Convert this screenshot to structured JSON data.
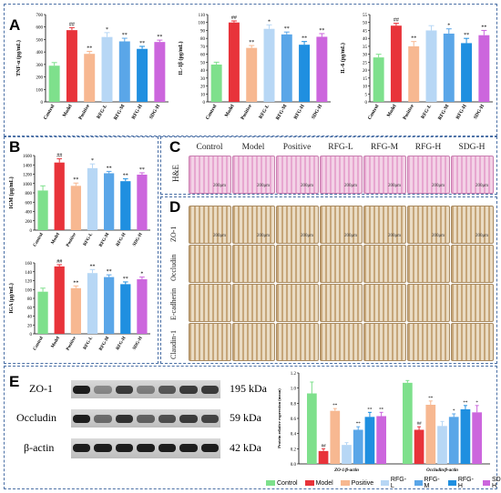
{
  "panels": {
    "A": "A",
    "B": "B",
    "C": "C",
    "D": "D",
    "E": "E"
  },
  "groups": [
    "Control",
    "Model",
    "Positive",
    "RFG-L",
    "RFG-M",
    "RFG-H",
    "SDG-H"
  ],
  "colors": [
    "#7ee08c",
    "#e8333a",
    "#f7b891",
    "#b7d7f5",
    "#5aa6e8",
    "#1f8fe0",
    "#cc66dd"
  ],
  "chart_data": [
    {
      "id": "A1",
      "type": "bar",
      "ylabel": "TNF-α (pg/mL)",
      "ylim": [
        0,
        700
      ],
      "ticks": [
        0,
        100,
        200,
        300,
        400,
        500,
        600,
        700
      ],
      "values": [
        290,
        575,
        385,
        520,
        485,
        425,
        480
      ],
      "errors": [
        25,
        20,
        20,
        35,
        25,
        20,
        15
      ],
      "sig": [
        "",
        "##",
        "**",
        "*",
        "**",
        "**",
        "**"
      ]
    },
    {
      "id": "A2",
      "type": "bar",
      "ylabel": "IL-1β (pg/mL)",
      "ylim": [
        0,
        110
      ],
      "ticks": [
        0,
        10,
        20,
        30,
        40,
        50,
        60,
        70,
        80,
        90,
        100,
        110
      ],
      "values": [
        47,
        100,
        68,
        92,
        85,
        72,
        82
      ],
      "errors": [
        3,
        2,
        3,
        5,
        3,
        4,
        4
      ],
      "sig": [
        "",
        "##",
        "**",
        "*",
        "**",
        "**",
        "**"
      ]
    },
    {
      "id": "A3",
      "type": "bar",
      "ylabel": "IL-6 (pg/mL)",
      "ylim": [
        0,
        55
      ],
      "ticks": [
        0,
        5,
        10,
        15,
        20,
        25,
        30,
        35,
        40,
        45,
        50,
        55
      ],
      "values": [
        28,
        48,
        35,
        45,
        43,
        37,
        42
      ],
      "errors": [
        2,
        1.5,
        3,
        3,
        3,
        3,
        3
      ],
      "sig": [
        "",
        "##",
        "**",
        "",
        "*",
        "**",
        "**"
      ]
    },
    {
      "id": "B1",
      "type": "bar",
      "ylabel": "IGM (μg/mL)",
      "ylim": [
        0,
        1600
      ],
      "ticks": [
        0,
        200,
        400,
        600,
        800,
        1000,
        1200,
        1400,
        1600
      ],
      "values": [
        850,
        1450,
        950,
        1330,
        1220,
        1050,
        1190
      ],
      "errors": [
        100,
        80,
        60,
        90,
        40,
        50,
        40
      ],
      "sig": [
        "",
        "##",
        "**",
        "*",
        "**",
        "**",
        "**"
      ]
    },
    {
      "id": "B2",
      "type": "bar",
      "ylabel": "IGA (μg/mL)",
      "ylim": [
        0,
        160
      ],
      "ticks": [
        0,
        20,
        40,
        60,
        80,
        100,
        120,
        140,
        160
      ],
      "values": [
        95,
        152,
        103,
        137,
        128,
        112,
        123
      ],
      "errors": [
        8,
        4,
        5,
        8,
        5,
        5,
        5
      ],
      "sig": [
        "",
        "##",
        "**",
        "**",
        "**",
        "**",
        "*"
      ]
    },
    {
      "id": "E",
      "type": "bar",
      "ylabel": "Protein relative expression (mean)",
      "ylim": [
        0,
        1.2
      ],
      "ticks": [
        0,
        0.2,
        0.4,
        0.6,
        0.8,
        1.0,
        1.2
      ],
      "categories": [
        "ZO-1/β-actin",
        "Occludin/β-actin"
      ],
      "series": [
        {
          "name": "Control",
          "values": [
            0.93,
            1.07
          ],
          "errors": [
            0.15,
            0.03
          ]
        },
        {
          "name": "Model",
          "values": [
            0.17,
            0.45
          ],
          "errors": [
            0.03,
            0.04
          ]
        },
        {
          "name": "Positive",
          "values": [
            0.7,
            0.78
          ],
          "errors": [
            0.03,
            0.05
          ]
        },
        {
          "name": "RFG-L",
          "values": [
            0.25,
            0.5
          ],
          "errors": [
            0.03,
            0.06
          ]
        },
        {
          "name": "RFG-M",
          "values": [
            0.45,
            0.62
          ],
          "errors": [
            0.04,
            0.04
          ]
        },
        {
          "name": "RFG-H",
          "values": [
            0.62,
            0.72
          ],
          "errors": [
            0.06,
            0.05
          ]
        },
        {
          "name": "SDG-H",
          "values": [
            0.63,
            0.68
          ],
          "errors": [
            0.05,
            0.09
          ]
        }
      ],
      "sig": [
        [
          "",
          "##",
          "**",
          "",
          "**",
          "**",
          "**"
        ],
        [
          "",
          "##",
          "**",
          "",
          "*",
          "**",
          "*"
        ]
      ]
    }
  ],
  "C": {
    "groups": [
      "Control",
      "Model",
      "Positive",
      "RFG-L",
      "RFG-M",
      "RFG-H",
      "SDG-H"
    ],
    "row": "H&E",
    "scale": "200μm"
  },
  "D": {
    "rows": [
      "ZO-1",
      "Occludin",
      "E-cadherin",
      "Claudin-1"
    ],
    "scale": "200μm"
  },
  "E_blot": {
    "rows": [
      "ZO-1",
      "Occludin",
      "β-actin"
    ],
    "kda": [
      "195 kDa",
      "59 kDa",
      "42 kDa"
    ]
  }
}
